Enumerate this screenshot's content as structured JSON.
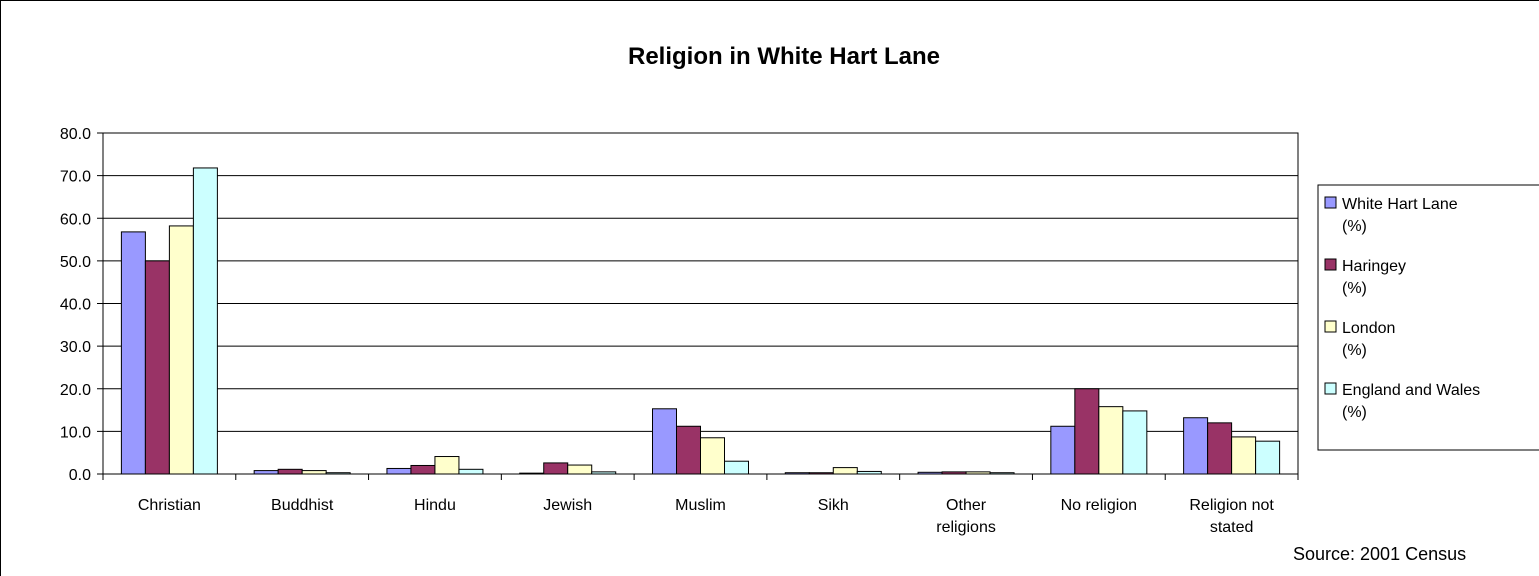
{
  "chart_data": {
    "type": "bar",
    "title": "Religion in White Hart Lane",
    "xlabel": "",
    "ylabel": "",
    "ylim": [
      0,
      80
    ],
    "yticks": [
      "0.0",
      "10.0",
      "20.0",
      "30.0",
      "40.0",
      "50.0",
      "60.0",
      "70.0",
      "80.0"
    ],
    "grid": true,
    "legend_position": "right",
    "categories": [
      [
        "Christian"
      ],
      [
        "Buddhist"
      ],
      [
        "Hindu"
      ],
      [
        "Jewish"
      ],
      [
        "Muslim"
      ],
      [
        "Sikh"
      ],
      [
        "Other",
        "religions"
      ],
      [
        "No religion"
      ],
      [
        "Religion not",
        "stated"
      ]
    ],
    "series": [
      {
        "name": [
          "White Hart Lane",
          "(%)"
        ],
        "color": "#9999ff",
        "values": [
          56.8,
          0.8,
          1.3,
          0.2,
          15.3,
          0.3,
          0.4,
          11.2,
          13.2
        ]
      },
      {
        "name": [
          "Haringey",
          "(%)"
        ],
        "color": "#993366",
        "values": [
          50.0,
          1.1,
          2.0,
          2.6,
          11.2,
          0.3,
          0.5,
          20.0,
          12.0
        ]
      },
      {
        "name": [
          "London",
          "(%)"
        ],
        "color": "#ffffcc",
        "values": [
          58.2,
          0.8,
          4.1,
          2.1,
          8.5,
          1.5,
          0.5,
          15.8,
          8.7
        ]
      },
      {
        "name": [
          "England and Wales",
          "(%)"
        ],
        "color": "#ccffff",
        "values": [
          71.8,
          0.3,
          1.1,
          0.5,
          3.0,
          0.6,
          0.3,
          14.8,
          7.7
        ]
      }
    ],
    "source": "Source: 2001 Census"
  }
}
